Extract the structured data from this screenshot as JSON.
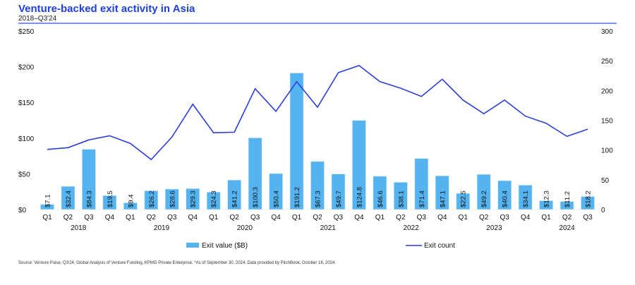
{
  "header": {
    "title": "Venture-backed exit activity in Asia",
    "subtitle": "2018–Q3'24"
  },
  "source": "Source: Venture Pulse, Q3'24, Global Analysis of Venture Funding, KPMG Private Enterprise. *As of September 30, 2024. Data provided by PitchBook, October 16, 2024.",
  "colors": {
    "bar": "#55b4f0",
    "line": "#2b3fd6",
    "title": "#1e40e0"
  },
  "chart_data": {
    "type": "bar+line",
    "categories": [
      "Q1",
      "Q2",
      "Q3",
      "Q4",
      "Q1",
      "Q2",
      "Q3",
      "Q4",
      "Q1",
      "Q2",
      "Q3",
      "Q4",
      "Q1",
      "Q2",
      "Q3",
      "Q4",
      "Q1",
      "Q2",
      "Q3",
      "Q4",
      "Q1",
      "Q2",
      "Q3",
      "Q4",
      "Q1",
      "Q2",
      "Q3"
    ],
    "years": [
      {
        "label": "2018",
        "span": 4
      },
      {
        "label": "2019",
        "span": 4
      },
      {
        "label": "2020",
        "span": 4
      },
      {
        "label": "2021",
        "span": 4
      },
      {
        "label": "2022",
        "span": 4
      },
      {
        "label": "2023",
        "span": 4
      },
      {
        "label": "2024",
        "span": 3
      }
    ],
    "series": [
      {
        "name": "Exit value ($B)",
        "type": "bar",
        "axis": "left",
        "values": [
          7.1,
          32.4,
          84.3,
          19.5,
          9.4,
          26.2,
          28.6,
          29.3,
          24.3,
          41.2,
          100.3,
          50.4,
          191.2,
          67.3,
          49.7,
          124.8,
          46.6,
          38.1,
          71.4,
          47.1,
          22.5,
          49.2,
          40.4,
          34.1,
          12.3,
          11.2,
          18.2
        ],
        "labels": [
          "$7.1",
          "$32.4",
          "$84.3",
          "$19.5",
          "$9.4",
          "$26.2",
          "$28.6",
          "$29.3",
          "$24.3",
          "$41.2",
          "$100.3",
          "$50.4",
          "$191.2",
          "$67.3",
          "$49.7",
          "$124.8",
          "$46.6",
          "$38.1",
          "$71.4",
          "$47.1",
          "$22.5",
          "$49.2",
          "$40.4",
          "$34.1",
          "$12.3",
          "$11.2",
          "$18.2"
        ]
      },
      {
        "name": "Exit count",
        "type": "line",
        "axis": "right",
        "values": [
          101,
          104,
          117,
          124,
          111,
          84,
          122,
          177,
          129,
          130,
          203,
          165,
          215,
          172,
          230,
          242,
          215,
          204,
          190,
          219,
          184,
          161,
          184,
          157,
          145,
          123,
          135
        ]
      }
    ],
    "left_axis": {
      "ylim": [
        0,
        250
      ],
      "ticks": [
        "$0",
        "$50",
        "$100",
        "$150",
        "$200",
        "$250"
      ]
    },
    "right_axis": {
      "ylim": [
        0,
        300
      ],
      "ticks": [
        "0",
        "50",
        "100",
        "150",
        "200",
        "250",
        "300"
      ]
    },
    "legend": "bottom",
    "grid": false
  }
}
